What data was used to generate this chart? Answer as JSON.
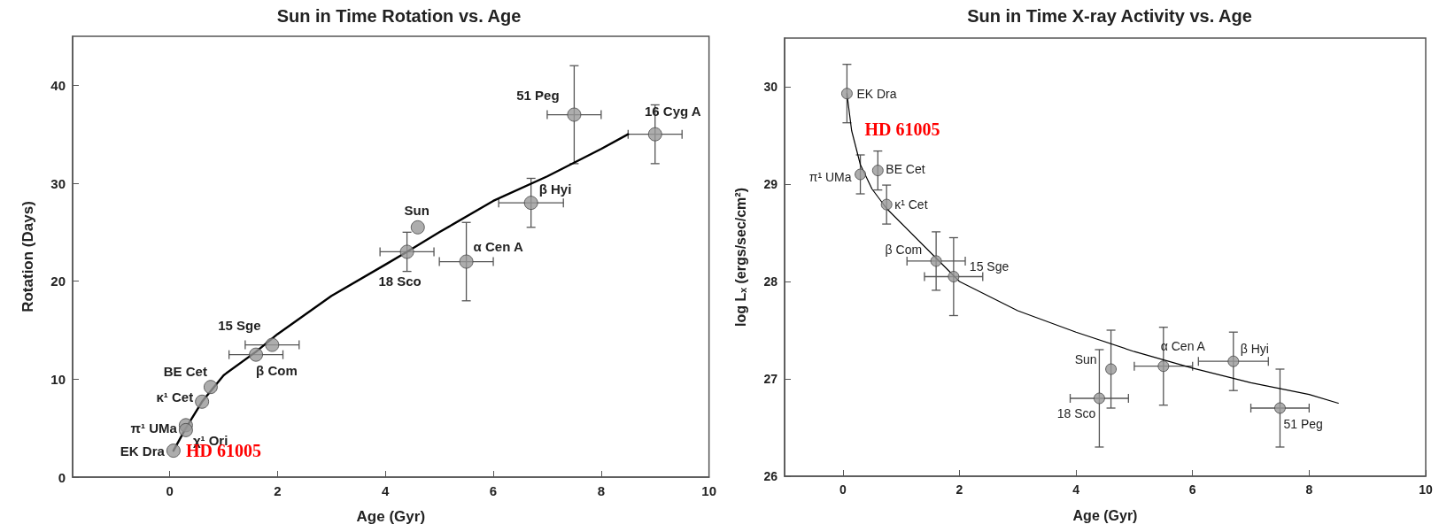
{
  "chart_data": [
    {
      "type": "scatter",
      "title": "Sun in Time Rotation vs. Age",
      "xlabel": "Age (Gyr)",
      "ylabel": "Rotation (Days)",
      "xlim": [
        -1.8,
        10
      ],
      "ylim": [
        0,
        45
      ],
      "xticks": [
        0,
        2,
        4,
        6,
        8,
        10
      ],
      "yticks": [
        0,
        10,
        20,
        30,
        40
      ],
      "series": [
        {
          "marker": "circle",
          "color": "#999999",
          "x": [
            0.07,
            0.3,
            0.3,
            0.6,
            0.76,
            1.6,
            1.9,
            4.6,
            4.4,
            5.5,
            6.7,
            7.5,
            9.0
          ],
          "values": [
            2.7,
            5.3,
            4.8,
            7.7,
            9.2,
            12.5,
            13.5,
            25.5,
            23.0,
            22.0,
            28.0,
            37.0,
            35.0
          ],
          "errors": [
            null,
            null,
            null,
            null,
            null,
            null,
            null,
            null,
            2,
            4,
            2.5,
            5,
            3
          ],
          "xerrors": [
            null,
            null,
            null,
            null,
            null,
            0.5,
            0.5,
            null,
            0.5,
            0.5,
            0.6,
            0.5,
            0.5
          ]
        },
        {
          "type": "line",
          "marker": "none",
          "color": "#000000",
          "x": [
            0.07,
            0.3,
            0.6,
            1,
            1.6,
            2,
            3,
            4,
            4.4,
            5,
            6,
            7,
            8,
            8.5
          ],
          "values": [
            2.7,
            5,
            7.7,
            10.4,
            12.8,
            14.6,
            18.5,
            21.7,
            23,
            25,
            28.2,
            30.7,
            33.5,
            35
          ]
        }
      ],
      "annotations": [
        {
          "text": "EK Dra",
          "x": 0.07,
          "y": 2.7
        },
        {
          "text": "π¹ UMa",
          "x": 0.3,
          "y": 5.3
        },
        {
          "text": "χ¹ Ori",
          "x": 0.3,
          "y": 4.8
        },
        {
          "text": "κ¹ Cet",
          "x": 0.6,
          "y": 7.7
        },
        {
          "text": "BE Cet",
          "x": 0.76,
          "y": 9.2
        },
        {
          "text": "β Com",
          "x": 1.6,
          "y": 12.5
        },
        {
          "text": "15 Sge",
          "x": 1.9,
          "y": 13.5
        },
        {
          "text": "Sun",
          "x": 4.6,
          "y": 25.5
        },
        {
          "text": "18 Sco",
          "x": 4.4,
          "y": 23.0
        },
        {
          "text": "α Cen A",
          "x": 5.5,
          "y": 22.0
        },
        {
          "text": "β Hyi",
          "x": 6.7,
          "y": 28.0
        },
        {
          "text": "51 Peg",
          "x": 7.5,
          "y": 37.0
        },
        {
          "text": "16 Cyg A",
          "x": 9.0,
          "y": 35.0
        },
        "HD 61005"
      ]
    },
    {
      "type": "scatter",
      "title": "Sun in Time X-ray Activity vs. Age",
      "xlabel": "Age (Gyr)",
      "ylabel": "log Lₓ (ergs/sec/cm²)",
      "xlim": [
        -1,
        10
      ],
      "ylim": [
        26,
        30.5
      ],
      "xticks": [
        0,
        2,
        4,
        6,
        8,
        10
      ],
      "yticks": [
        26,
        27,
        28,
        29,
        30
      ],
      "series": [
        {
          "marker": "circle",
          "color": "#999999",
          "x": [
            0.07,
            0.3,
            0.6,
            0.75,
            1.6,
            1.9,
            4.6,
            4.4,
            5.5,
            6.7,
            7.5
          ],
          "values": [
            29.93,
            29.1,
            29.14,
            28.79,
            28.21,
            28.05,
            27.1,
            26.8,
            27.13,
            27.18,
            26.7
          ],
          "errors": [
            0.3,
            0.2,
            0.2,
            0.2,
            0.3,
            0.4,
            0.4,
            0.5,
            0.4,
            0.3,
            0.4
          ],
          "xerrors": [
            null,
            null,
            null,
            null,
            0.5,
            0.5,
            null,
            0.5,
            0.5,
            0.6,
            0.5
          ]
        },
        {
          "type": "line",
          "marker": "none",
          "color": "#000000",
          "x": [
            0.07,
            0.15,
            0.3,
            0.5,
            0.75,
            1,
            1.5,
            2,
            3,
            4,
            5,
            6,
            7,
            8,
            8.5
          ],
          "values": [
            29.93,
            29.55,
            29.2,
            28.95,
            28.75,
            28.6,
            28.3,
            28.0,
            27.7,
            27.48,
            27.28,
            27.11,
            26.96,
            26.84,
            26.75
          ]
        }
      ],
      "annotations": [
        {
          "text": "EK Dra",
          "x": 0.07,
          "y": 29.93
        },
        {
          "text": "π¹ UMa",
          "x": 0.3,
          "y": 29.1
        },
        {
          "text": "BE Cet",
          "x": 0.6,
          "y": 29.14
        },
        {
          "text": "κ¹ Cet",
          "x": 0.75,
          "y": 28.79
        },
        {
          "text": "β Com",
          "x": 1.6,
          "y": 28.21
        },
        {
          "text": "15 Sge",
          "x": 1.9,
          "y": 28.05
        },
        {
          "text": "Sun",
          "x": 4.6,
          "y": 27.1
        },
        {
          "text": "18 Sco",
          "x": 4.4,
          "y": 26.8
        },
        {
          "text": "α Cen A",
          "x": 5.5,
          "y": 27.13
        },
        {
          "text": "β Hyi",
          "x": 6.7,
          "y": 27.18
        },
        {
          "text": "51 Peg",
          "x": 7.5,
          "y": 26.7
        },
        "HD 61005"
      ]
    }
  ]
}
